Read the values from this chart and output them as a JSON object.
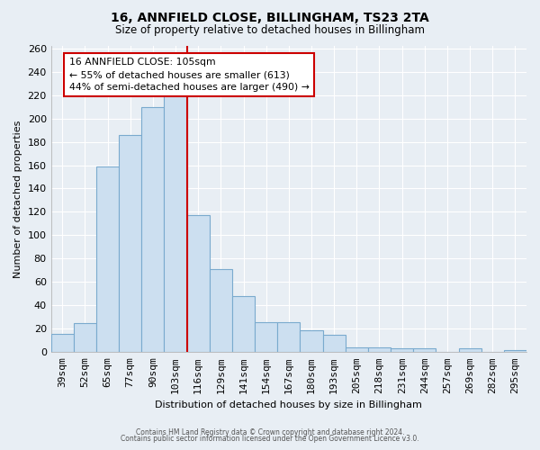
{
  "title": "16, ANNFIELD CLOSE, BILLINGHAM, TS23 2TA",
  "subtitle": "Size of property relative to detached houses in Billingham",
  "xlabel": "Distribution of detached houses by size in Billingham",
  "ylabel": "Number of detached properties",
  "categories": [
    "39sqm",
    "52sqm",
    "65sqm",
    "77sqm",
    "90sqm",
    "103sqm",
    "116sqm",
    "129sqm",
    "141sqm",
    "154sqm",
    "167sqm",
    "180sqm",
    "193sqm",
    "205sqm",
    "218sqm",
    "231sqm",
    "244sqm",
    "257sqm",
    "269sqm",
    "282sqm",
    "295sqm"
  ],
  "values": [
    16,
    25,
    159,
    186,
    210,
    220,
    117,
    71,
    48,
    26,
    26,
    19,
    15,
    4,
    4,
    3,
    3,
    0,
    3,
    0,
    2
  ],
  "bar_color": "#ccdff0",
  "bar_edge_color": "#7aaace",
  "property_line_x": 5.5,
  "property_line_color": "#cc0000",
  "annotation_title": "16 ANNFIELD CLOSE: 105sqm",
  "annotation_line1": "← 55% of detached houses are smaller (613)",
  "annotation_line2": "44% of semi-detached houses are larger (490) →",
  "annotation_box_color": "#ffffff",
  "annotation_box_edge": "#cc0000",
  "ylim": [
    0,
    262
  ],
  "yticks": [
    0,
    20,
    40,
    60,
    80,
    100,
    120,
    140,
    160,
    180,
    200,
    220,
    240,
    260
  ],
  "footer1": "Contains HM Land Registry data © Crown copyright and database right 2024.",
  "footer2": "Contains public sector information licensed under the Open Government Licence v3.0.",
  "background_color": "#e8eef4",
  "grid_color": "#ffffff",
  "annotation_fontsize": 7.8,
  "title_fontsize": 10,
  "subtitle_fontsize": 8.5
}
